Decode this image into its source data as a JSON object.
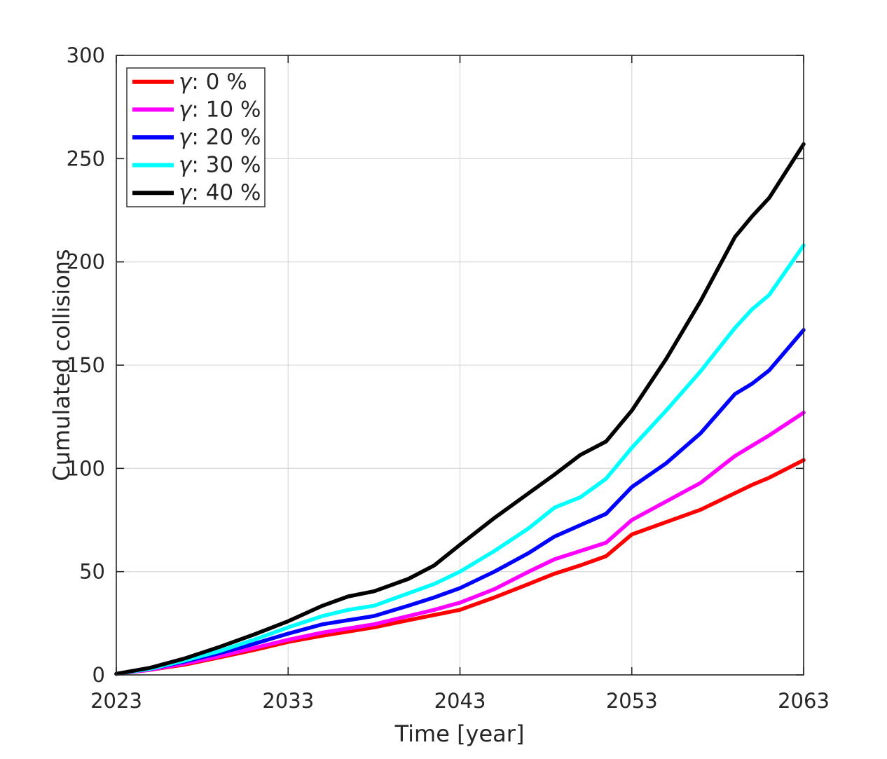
{
  "chart_data": {
    "type": "line",
    "title": "",
    "xlabel": "Time [year]",
    "ylabel": "Cumulated collisions",
    "xlim": [
      2023,
      2063
    ],
    "ylim": [
      0,
      300
    ],
    "xticks": [
      2023,
      2033,
      2043,
      2053,
      2063
    ],
    "yticks": [
      0,
      50,
      100,
      150,
      200,
      250,
      300
    ],
    "grid": true,
    "legend_position": "top-left",
    "axis_color": "#262626",
    "grid_color": "#dcdcdc",
    "background": "#ffffff",
    "x": [
      2023,
      2025,
      2027,
      2029,
      2031,
      2033,
      2035,
      2036.5,
      2038,
      2040,
      2041.5,
      2043,
      2045,
      2047,
      2048.5,
      2050,
      2051.5,
      2053,
      2055,
      2057,
      2059,
      2060,
      2061,
      2063
    ],
    "series": [
      {
        "name": "γ: 0 %",
        "symbol": "γ",
        "rest": ": 0 %",
        "color": "#ff0000",
        "values": [
          0.5,
          2.5,
          5,
          8.5,
          12,
          16,
          19,
          21,
          23,
          26.5,
          29,
          31.5,
          37.5,
          44,
          49,
          53,
          57.5,
          68,
          74,
          80,
          88,
          92,
          95.5,
          104
        ]
      },
      {
        "name": "γ: 10 %",
        "symbol": "γ",
        "rest": ": 10 %",
        "color": "#ff00ff",
        "values": [
          0.5,
          2.5,
          5.5,
          9,
          13,
          17,
          20.5,
          22.5,
          24.5,
          28.5,
          31.5,
          35,
          41.5,
          50,
          56,
          60,
          64,
          75,
          84,
          93,
          106,
          111,
          116,
          127
        ]
      },
      {
        "name": "γ: 20 %",
        "symbol": "γ",
        "rest": ": 20 %",
        "color": "#0000ff",
        "values": [
          0.5,
          3,
          6.5,
          10.5,
          15,
          20,
          24.5,
          26.5,
          28.5,
          33.5,
          37.5,
          42,
          50,
          59,
          67,
          72.5,
          78,
          91,
          102.5,
          117,
          136,
          141,
          147.5,
          167
        ]
      },
      {
        "name": "γ: 30 %",
        "symbol": "γ",
        "rest": ": 30 %",
        "color": "#00ffff",
        "values": [
          0.5,
          3,
          7,
          11.5,
          17,
          23,
          28.5,
          31.5,
          33.5,
          39.5,
          44,
          50,
          60,
          71,
          81,
          86,
          95,
          110,
          128,
          147,
          168,
          177,
          184,
          208
        ]
      },
      {
        "name": "γ: 40 %",
        "symbol": "γ",
        "rest": ": 40 %",
        "color": "#000000",
        "values": [
          0.5,
          3.5,
          8,
          13.5,
          19.5,
          26,
          33.5,
          38,
          40.5,
          46.5,
          53,
          63,
          76,
          88,
          97,
          106.5,
          113,
          128,
          153,
          181,
          212,
          222,
          231,
          257
        ]
      }
    ]
  }
}
